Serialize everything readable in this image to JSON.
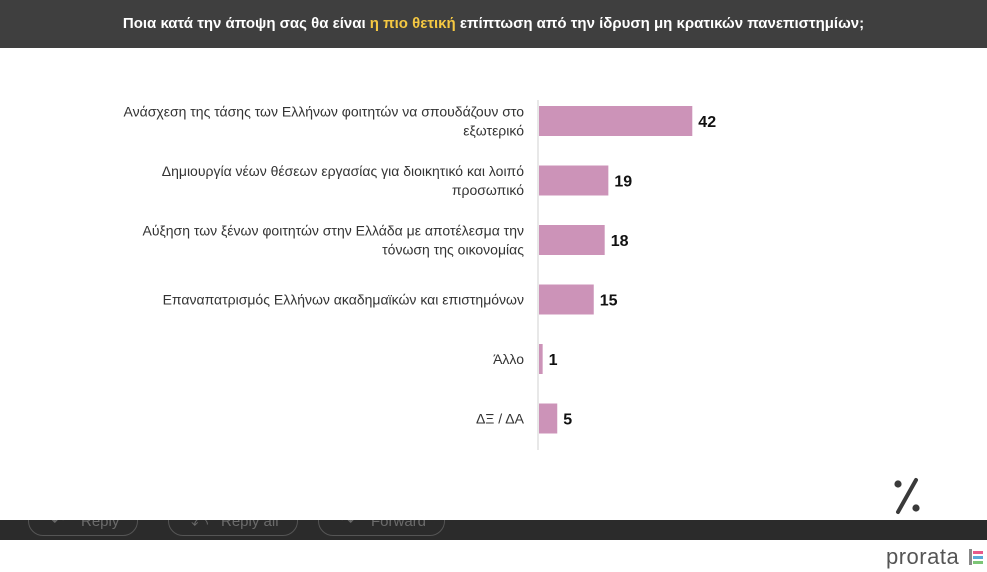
{
  "header": {
    "title_pre": "Ποια κατά την άποψη σας θα είναι ",
    "title_highlight": "η πιο θετική",
    "title_post": " επίπτωση από την ίδρυση μη κρατικών πανεπιστημίων;",
    "highlight_color": "#f5c842"
  },
  "chart_data": {
    "type": "bar",
    "orientation": "horizontal",
    "title": "Ποια κατά την άποψη σας θα είναι η πιο θετική επίπτωση από την ίδρυση μη κρατικών πανεπιστημίων;",
    "categories": [
      [
        "Ανάσχεση της τάσης των Ελλήνων φοιτητών να σπουδάζουν στο",
        "εξωτερικό"
      ],
      [
        "Δημιουργία νέων θέσεων εργασίας για διοικητικό και λοιπό",
        "προσωπικό"
      ],
      [
        "Αύξηση των ξένων φοιτητών στην Ελλάδα με αποτέλεσμα την",
        "τόνωση της οικονομίας"
      ],
      [
        "Επαναπατρισμός Ελλήνων ακαδημαϊκών και επιστημόνων"
      ],
      [
        "Άλλο"
      ],
      [
        "ΔΞ / ΔΑ"
      ]
    ],
    "values": [
      42,
      19,
      18,
      15,
      1,
      5
    ],
    "xlim": [
      0,
      100
    ],
    "bar_color": "#cc93b8",
    "grid": false,
    "legend": "none"
  },
  "email_bar": {
    "reply_label": "Reply",
    "reply_all_label": "Reply all",
    "forward_label": "Forward"
  },
  "brand": {
    "name": "prorata",
    "bar_colors": [
      "#e85a8a",
      "#5aa9d8",
      "#7cc576"
    ]
  }
}
